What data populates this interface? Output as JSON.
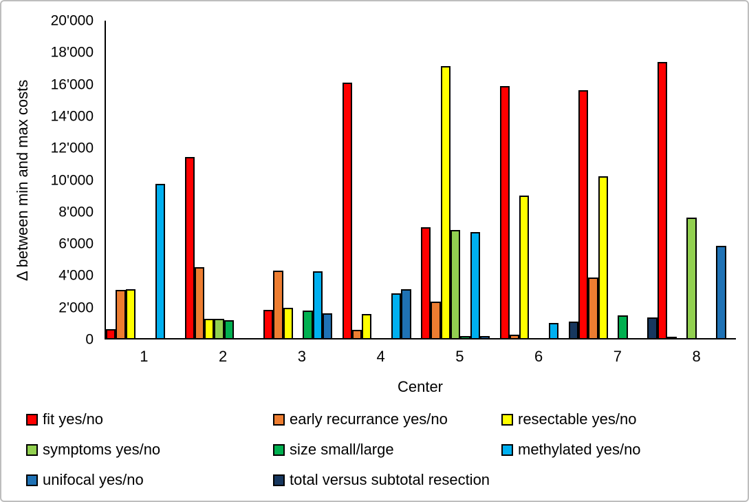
{
  "chart_data": {
    "type": "bar",
    "title": "",
    "xlabel": "Center",
    "ylabel": "Δ between min and max costs",
    "ylim": [
      0,
      20000
    ],
    "ytick_step": 2000,
    "ytick_labels": [
      "0",
      "2'000",
      "4'000",
      "6'000",
      "8'000",
      "10'000",
      "12'000",
      "14'000",
      "16'000",
      "18'000",
      "20'000"
    ],
    "categories": [
      "1",
      "2",
      "3",
      "4",
      "5",
      "6",
      "7",
      "8"
    ],
    "grid": false,
    "legend_position": "bottom",
    "bar_outline_color": "#000000",
    "series": [
      {
        "name": "fit yes/no",
        "color": "#FF0000",
        "values": [
          550,
          11400,
          1800,
          16100,
          7000,
          15900,
          15600,
          17400
        ]
      },
      {
        "name": "early recurrance yes/no",
        "color": "#ED7D31",
        "values": [
          3050,
          4450,
          4250,
          500,
          2300,
          200,
          3800,
          100
        ]
      },
      {
        "name": "resectable yes/no",
        "color": "#FFFF00",
        "values": [
          3100,
          1200,
          1900,
          1500,
          17150,
          9000,
          10200,
          null
        ]
      },
      {
        "name": "symptoms yes/no",
        "color": "#92D050",
        "values": [
          null,
          1200,
          null,
          null,
          6800,
          null,
          null,
          7600
        ]
      },
      {
        "name": "size small/large",
        "color": "#00B050",
        "values": [
          null,
          1150,
          1750,
          null,
          150,
          null,
          1450,
          null
        ]
      },
      {
        "name": "methylated yes/no",
        "color": "#00B0F0",
        "values": [
          9700,
          null,
          4200,
          2800,
          6700,
          950,
          null,
          null
        ]
      },
      {
        "name": "unifocal yes/no",
        "color": "#1F72B5",
        "values": [
          null,
          null,
          1550,
          3100,
          150,
          null,
          null,
          5800
        ]
      },
      {
        "name": "total versus subtotal resection",
        "color": "#17375E",
        "values": [
          null,
          null,
          null,
          null,
          null,
          1050,
          1300,
          null
        ]
      }
    ]
  }
}
